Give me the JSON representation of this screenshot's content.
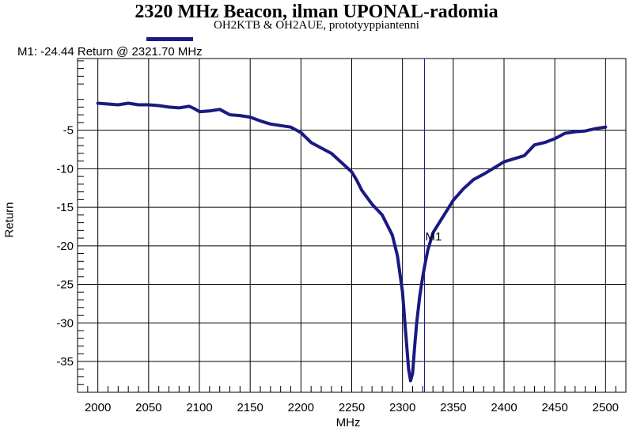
{
  "chart_data": {
    "type": "line",
    "title": "2320 MHz Beacon, ilman UPONAL-radomia",
    "subtitle": "OH2KTB & OH2AUE, prototyyppiantenni",
    "xlabel": "MHz",
    "ylabel": "Return",
    "xlim": [
      1980,
      2520
    ],
    "ylim": [
      -39,
      4.3
    ],
    "xticks": [
      2000,
      2050,
      2100,
      2150,
      2200,
      2250,
      2300,
      2350,
      2400,
      2450,
      2500
    ],
    "yticks": [
      -5,
      -10,
      -15,
      -20,
      -25,
      -30,
      -35
    ],
    "grid": true,
    "line_color": "#1a1a80",
    "marker": {
      "label": "M1",
      "x": 2321.7,
      "y": -24.44,
      "readout": "M1: -24.44 Return @ 2321.70 MHz"
    },
    "series": [
      {
        "x": [
          2000,
          2010,
          2020,
          2030,
          2040,
          2050,
          2060,
          2070,
          2080,
          2090,
          2095,
          2100,
          2110,
          2120,
          2130,
          2140,
          2150,
          2160,
          2170,
          2180,
          2190,
          2200,
          2210,
          2220,
          2230,
          2240,
          2250,
          2255,
          2260,
          2270,
          2280,
          2290,
          2295,
          2300,
          2303,
          2306,
          2308,
          2310,
          2312,
          2314,
          2317,
          2320,
          2322,
          2325,
          2330,
          2340,
          2350,
          2360,
          2370,
          2380,
          2390,
          2400,
          2410,
          2420,
          2430,
          2440,
          2450,
          2460,
          2470,
          2480,
          2490,
          2500
        ],
        "y": [
          -1.5,
          -1.6,
          -1.7,
          -1.5,
          -1.7,
          -1.7,
          -1.8,
          -2.0,
          -2.1,
          -1.9,
          -2.2,
          -2.6,
          -2.5,
          -2.3,
          -3.0,
          -3.1,
          -3.3,
          -3.8,
          -4.2,
          -4.4,
          -4.6,
          -5.3,
          -6.6,
          -7.3,
          -8.0,
          -9.2,
          -10.4,
          -11.5,
          -12.8,
          -14.6,
          -16.0,
          -18.6,
          -21.3,
          -26.0,
          -31.0,
          -36.0,
          -37.5,
          -36.5,
          -33.0,
          -30.0,
          -26.5,
          -24.0,
          -22.5,
          -20.5,
          -18.3,
          -16.2,
          -14.1,
          -12.6,
          -11.4,
          -10.7,
          -9.9,
          -9.1,
          -8.7,
          -8.3,
          -6.9,
          -6.6,
          -6.1,
          -5.4,
          -5.2,
          -5.1,
          -4.8,
          -4.6
        ]
      }
    ]
  }
}
